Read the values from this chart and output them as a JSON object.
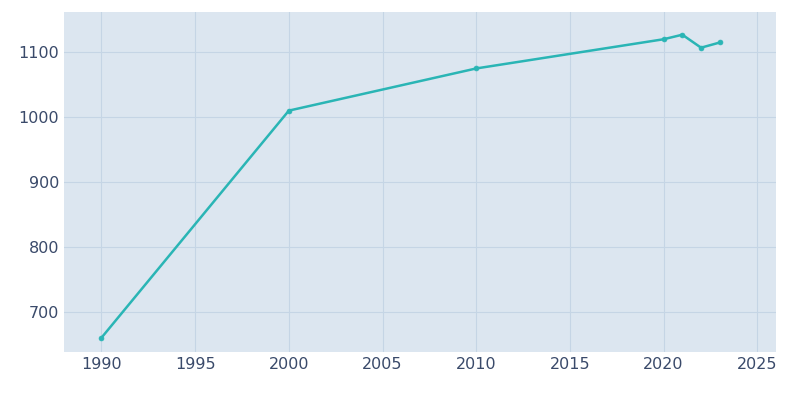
{
  "years": [
    1990,
    2000,
    2010,
    2020,
    2021,
    2022,
    2023
  ],
  "population": [
    660,
    1010,
    1075,
    1120,
    1127,
    1107,
    1115
  ],
  "line_color": "#2ab5b5",
  "marker_style": "o",
  "marker_size": 3.5,
  "fig_bg_color": "#ffffff",
  "axes_bg_color": "#dce6f0",
  "grid_color": "#c5d5e5",
  "xlim": [
    1988,
    2026
  ],
  "ylim": [
    638,
    1162
  ],
  "xticks": [
    1990,
    1995,
    2000,
    2005,
    2010,
    2015,
    2020,
    2025
  ],
  "yticks": [
    700,
    800,
    900,
    1000,
    1100
  ],
  "tick_label_color": "#3a4a6a",
  "tick_fontsize": 11.5,
  "linewidth": 1.8
}
